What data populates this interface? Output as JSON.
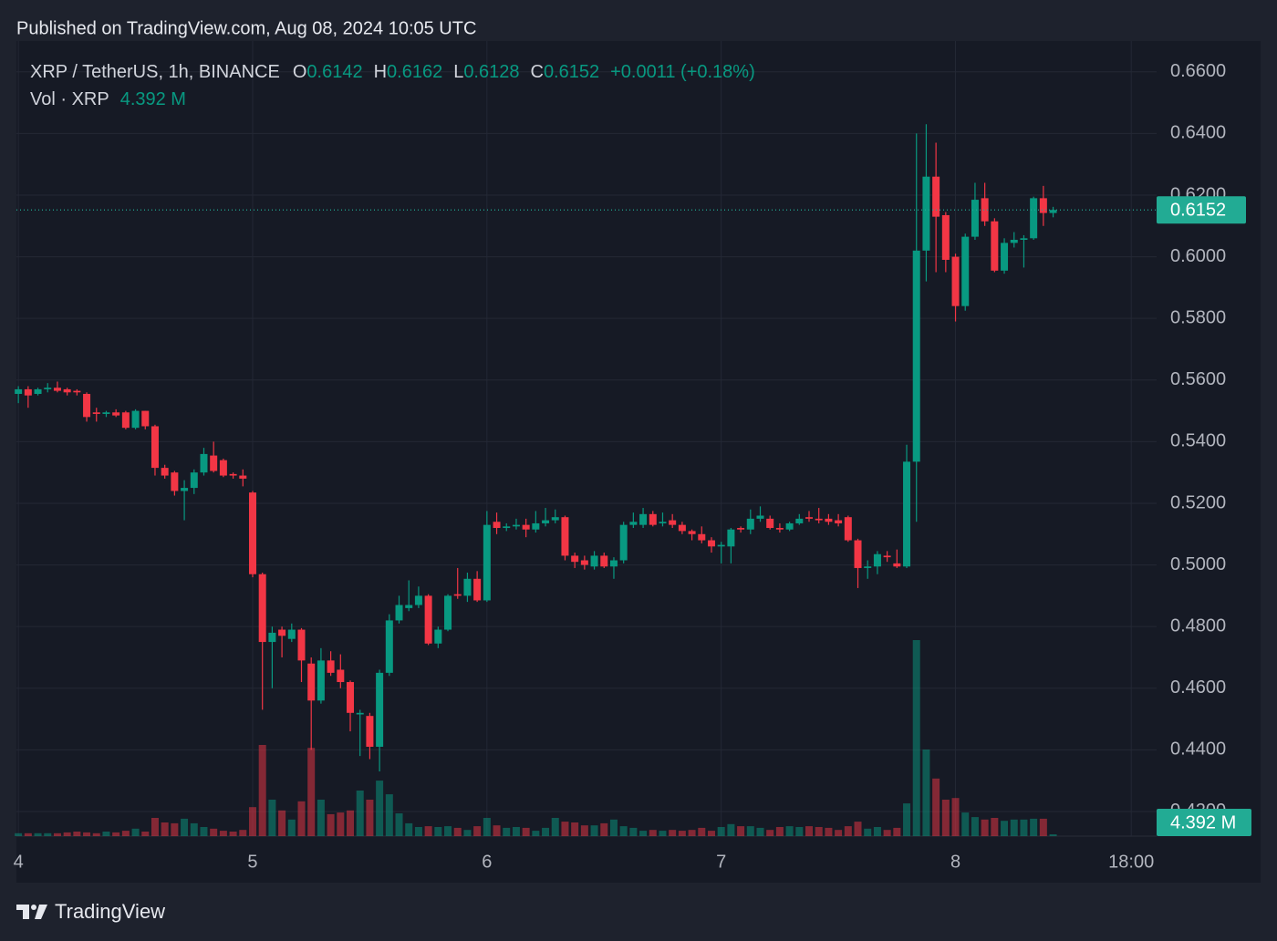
{
  "page": {
    "published": "Published on TradingView.com, Aug 08, 2024 10:05 UTC",
    "brand": "TradingView"
  },
  "chart_data": {
    "type": "candlestick",
    "symbol": "XRP / TetherUS, 1h, BINANCE",
    "ohlc_legend": [
      {
        "label": "O",
        "value": "0.6142"
      },
      {
        "label": "H",
        "value": "0.6162"
      },
      {
        "label": "L",
        "value": "0.6128"
      },
      {
        "label": "C",
        "value": "0.6152"
      }
    ],
    "change": "+0.0011 (+0.18%)",
    "volume_title": "Vol · XRP",
    "volume_readout": "4.392 M",
    "last_price_label": "0.6152",
    "up_color": "#089981",
    "down_color": "#f23645",
    "grid": true,
    "xlim": [
      -0.2,
      116.6
    ],
    "xticks": [
      {
        "value": 0,
        "label": "4"
      },
      {
        "value": 24,
        "label": "5"
      },
      {
        "value": 48,
        "label": "6"
      },
      {
        "value": 72,
        "label": "7"
      },
      {
        "value": 96,
        "label": "8"
      },
      {
        "value": 114,
        "label": "18:00"
      }
    ],
    "ylim": [
      0.412,
      0.67
    ],
    "yticks": [
      {
        "value": 0.42,
        "label": "0.4200"
      },
      {
        "value": 0.44,
        "label": "0.4400"
      },
      {
        "value": 0.46,
        "label": "0.4600"
      },
      {
        "value": 0.48,
        "label": "0.4800"
      },
      {
        "value": 0.5,
        "label": "0.5000"
      },
      {
        "value": 0.52,
        "label": "0.5200"
      },
      {
        "value": 0.54,
        "label": "0.5400"
      },
      {
        "value": 0.56,
        "label": "0.5600"
      },
      {
        "value": 0.58,
        "label": "0.5800"
      },
      {
        "value": 0.6,
        "label": "0.6000"
      },
      {
        "value": 0.62,
        "label": "0.6200"
      },
      {
        "value": 0.64,
        "label": "0.6400"
      },
      {
        "value": 0.66,
        "label": "0.6600"
      }
    ],
    "open": [
      0.5555,
      0.557,
      0.5555,
      0.557,
      0.5575,
      0.557,
      0.5565,
      0.5555,
      0.5495,
      0.549,
      0.5495,
      0.5495,
      0.5445,
      0.55,
      0.545,
      0.5315,
      0.53,
      0.524,
      0.525,
      0.53,
      0.5355,
      0.534,
      0.5295,
      0.529,
      0.5235,
      0.497,
      0.475,
      0.479,
      0.476,
      0.479,
      0.468,
      0.456,
      0.469,
      0.466,
      0.462,
      0.4515,
      0.451,
      0.441,
      0.465,
      0.482,
      0.486,
      0.487,
      0.49,
      0.4745,
      0.479,
      0.4905,
      0.49,
      0.4955,
      0.4885,
      0.514,
      0.512,
      0.5125,
      0.513,
      0.5115,
      0.5135,
      0.5145,
      0.5155,
      0.503,
      0.5015,
      0.4995,
      0.503,
      0.4995,
      0.5015,
      0.513,
      0.513,
      0.5165,
      0.5135,
      0.5145,
      0.513,
      0.511,
      0.51,
      0.508,
      0.506,
      0.506,
      0.512,
      0.5115,
      0.515,
      0.515,
      0.512,
      0.5115,
      0.5135,
      0.5155,
      0.515,
      0.515,
      0.5145,
      0.5155,
      0.508,
      0.499,
      0.4995,
      0.503,
      0.5005,
      0.4995,
      0.5335,
      0.602,
      0.626,
      0.6135,
      0.6,
      0.584,
      0.6065,
      0.619,
      0.6115,
      0.5955,
      0.6045,
      0.6055,
      0.606,
      0.619,
      0.6142
    ],
    "high": [
      0.558,
      0.558,
      0.5575,
      0.559,
      0.5595,
      0.5575,
      0.557,
      0.556,
      0.551,
      0.55,
      0.5505,
      0.55,
      0.5505,
      0.55,
      0.5455,
      0.5325,
      0.5305,
      0.5275,
      0.531,
      0.538,
      0.54,
      0.5345,
      0.53,
      0.531,
      0.524,
      0.4975,
      0.48,
      0.48,
      0.481,
      0.4795,
      0.47,
      0.473,
      0.472,
      0.471,
      0.4625,
      0.453,
      0.452,
      0.466,
      0.484,
      0.49,
      0.495,
      0.493,
      0.4905,
      0.48,
      0.4905,
      0.499,
      0.4975,
      0.498,
      0.5175,
      0.517,
      0.5135,
      0.515,
      0.515,
      0.5175,
      0.5185,
      0.518,
      0.516,
      0.504,
      0.503,
      0.5045,
      0.504,
      0.5025,
      0.514,
      0.517,
      0.5185,
      0.5175,
      0.517,
      0.5165,
      0.514,
      0.5115,
      0.5125,
      0.509,
      0.5075,
      0.512,
      0.5125,
      0.518,
      0.519,
      0.516,
      0.5135,
      0.514,
      0.5165,
      0.5175,
      0.5185,
      0.5165,
      0.5165,
      0.516,
      0.5085,
      0.5015,
      0.5045,
      0.5045,
      0.505,
      0.539,
      0.64,
      0.643,
      0.637,
      0.6145,
      0.601,
      0.6075,
      0.624,
      0.624,
      0.6125,
      0.606,
      0.608,
      0.607,
      0.6195,
      0.623,
      0.6162
    ],
    "low": [
      0.5525,
      0.551,
      0.555,
      0.556,
      0.556,
      0.555,
      0.555,
      0.5465,
      0.5465,
      0.548,
      0.548,
      0.544,
      0.544,
      0.544,
      0.529,
      0.528,
      0.5225,
      0.5145,
      0.523,
      0.529,
      0.53,
      0.5285,
      0.528,
      0.5255,
      0.496,
      0.453,
      0.46,
      0.47,
      0.475,
      0.462,
      0.44,
      0.455,
      0.464,
      0.46,
      0.446,
      0.438,
      0.437,
      0.433,
      0.464,
      0.481,
      0.485,
      0.486,
      0.474,
      0.473,
      0.4785,
      0.489,
      0.488,
      0.488,
      0.488,
      0.51,
      0.511,
      0.5115,
      0.509,
      0.5105,
      0.5125,
      0.5135,
      0.5015,
      0.499,
      0.4985,
      0.4985,
      0.499,
      0.4955,
      0.5005,
      0.512,
      0.512,
      0.5125,
      0.5125,
      0.512,
      0.51,
      0.508,
      0.507,
      0.504,
      0.5005,
      0.5005,
      0.5105,
      0.51,
      0.514,
      0.5115,
      0.5105,
      0.511,
      0.513,
      0.514,
      0.5135,
      0.513,
      0.5125,
      0.5075,
      0.4925,
      0.4955,
      0.497,
      0.501,
      0.499,
      0.499,
      0.514,
      0.592,
      0.595,
      0.595,
      0.579,
      0.5825,
      0.6055,
      0.61,
      0.595,
      0.5945,
      0.603,
      0.5965,
      0.6055,
      0.61,
      0.6128
    ],
    "close": [
      0.557,
      0.555,
      0.557,
      0.5575,
      0.5565,
      0.556,
      0.556,
      0.548,
      0.549,
      0.5495,
      0.5485,
      0.5445,
      0.55,
      0.545,
      0.5315,
      0.529,
      0.524,
      0.525,
      0.53,
      0.536,
      0.5305,
      0.529,
      0.529,
      0.528,
      0.497,
      0.475,
      0.478,
      0.477,
      0.479,
      0.469,
      0.456,
      0.469,
      0.465,
      0.462,
      0.452,
      0.452,
      0.441,
      0.465,
      0.482,
      0.487,
      0.487,
      0.49,
      0.4745,
      0.479,
      0.49,
      0.49,
      0.4955,
      0.4885,
      0.513,
      0.512,
      0.5125,
      0.513,
      0.5115,
      0.5135,
      0.5145,
      0.5155,
      0.503,
      0.501,
      0.5,
      0.503,
      0.4995,
      0.5015,
      0.513,
      0.514,
      0.5165,
      0.513,
      0.514,
      0.513,
      0.511,
      0.51,
      0.508,
      0.506,
      0.5065,
      0.5115,
      0.5115,
      0.515,
      0.516,
      0.512,
      0.5115,
      0.5135,
      0.515,
      0.515,
      0.5145,
      0.514,
      0.5135,
      0.508,
      0.499,
      0.4995,
      0.5035,
      0.5025,
      0.4995,
      0.5335,
      0.602,
      0.626,
      0.613,
      0.599,
      0.584,
      0.6065,
      0.6185,
      0.6115,
      0.5955,
      0.6045,
      0.6055,
      0.606,
      0.619,
      0.6142,
      0.6152
    ],
    "volume": [
      7,
      7,
      7,
      7,
      7,
      9,
      11,
      9,
      7,
      11,
      9,
      13,
      18,
      11,
      44,
      33,
      31,
      42,
      31,
      22,
      18,
      13,
      11,
      15,
      70,
      220,
      88,
      62,
      40,
      84,
      213,
      88,
      53,
      57,
      62,
      110,
      88,
      134,
      101,
      55,
      31,
      22,
      24,
      22,
      24,
      20,
      15,
      24,
      44,
      26,
      20,
      22,
      20,
      13,
      20,
      44,
      35,
      33,
      26,
      26,
      31,
      40,
      24,
      20,
      13,
      15,
      13,
      15,
      13,
      15,
      20,
      13,
      22,
      29,
      24,
      24,
      20,
      15,
      22,
      24,
      22,
      24,
      22,
      20,
      15,
      24,
      35,
      18,
      22,
      15,
      20,
      79,
      473,
      209,
      139,
      88,
      92,
      57,
      46,
      40,
      44,
      37,
      40,
      40,
      42,
      42,
      4.392
    ]
  }
}
